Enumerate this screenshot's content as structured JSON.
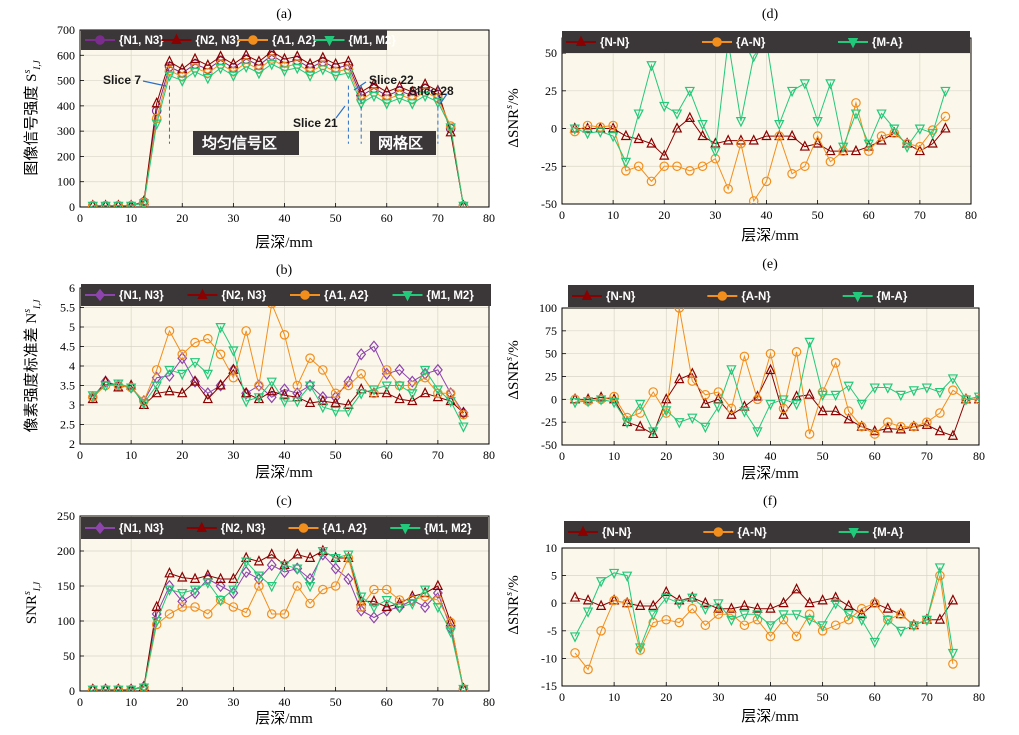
{
  "chart_data": [
    {
      "panel": "(a)",
      "type": "line",
      "xlabel": "层深/mm",
      "ylabel": "图像信号强度 S^s{I,J}",
      "xlim": [
        0,
        80
      ],
      "ylim": [
        0,
        700
      ],
      "xticks": [
        0,
        10,
        20,
        30,
        40,
        50,
        60,
        70,
        80
      ],
      "yticks": [
        0,
        100,
        200,
        300,
        400,
        500,
        600,
        700
      ],
      "grid": true,
      "legend": "top",
      "x": [
        2.5,
        5,
        7.5,
        10,
        12.5,
        15,
        17.5,
        20,
        22.5,
        25,
        27.5,
        30,
        32.5,
        35,
        37.5,
        40,
        42.5,
        45,
        47.5,
        50,
        52.5,
        55,
        57.5,
        60,
        62.5,
        65,
        67.5,
        70,
        72.5,
        75
      ],
      "series": [
        {
          "name": "{N1, N3}",
          "color": "#7b2d8e",
          "marker": "circle",
          "values": [
            5,
            5,
            5,
            5,
            20,
            380,
            555,
            530,
            565,
            545,
            580,
            550,
            585,
            560,
            600,
            570,
            580,
            550,
            575,
            550,
            560,
            440,
            470,
            440,
            460,
            440,
            470,
            445,
            310,
            5
          ]
        },
        {
          "name": "{N2, N3}",
          "color": "#8b0000",
          "marker": "triangle-up",
          "values": [
            5,
            5,
            5,
            5,
            22,
            410,
            575,
            545,
            585,
            560,
            595,
            565,
            600,
            575,
            615,
            585,
            595,
            565,
            590,
            565,
            575,
            455,
            485,
            455,
            475,
            455,
            485,
            460,
            295,
            5
          ]
        },
        {
          "name": "{A1, A2}",
          "color": "#f28e1c",
          "marker": "circle",
          "values": [
            5,
            5,
            5,
            5,
            18,
            350,
            540,
            515,
            550,
            530,
            565,
            535,
            570,
            545,
            585,
            555,
            565,
            535,
            560,
            535,
            545,
            425,
            455,
            425,
            445,
            425,
            455,
            430,
            320,
            5
          ]
        },
        {
          "name": "{M1, M2}",
          "color": "#22c97a",
          "marker": "triangle-down",
          "values": [
            5,
            5,
            5,
            5,
            15,
            330,
            520,
            500,
            535,
            510,
            550,
            520,
            555,
            530,
            565,
            540,
            550,
            520,
            545,
            520,
            530,
            410,
            440,
            410,
            430,
            410,
            440,
            415,
            315,
            5
          ]
        }
      ],
      "annotations": [
        "Slice 7",
        "Slice 21",
        "Slice 22",
        "Slice 28",
        "均匀信号区",
        "网格区"
      ]
    },
    {
      "panel": "(b)",
      "type": "line",
      "xlabel": "层深/mm",
      "ylabel": "像素强度标准差 N^s{I,J}",
      "xlim": [
        0,
        80
      ],
      "ylim": [
        2,
        6
      ],
      "xticks": [
        0,
        10,
        20,
        30,
        40,
        50,
        60,
        70,
        80
      ],
      "yticks": [
        2,
        2.5,
        3,
        3.5,
        4,
        4.5,
        5,
        5.5,
        6
      ],
      "grid": true,
      "legend": "top",
      "x": [
        2.5,
        5,
        7.5,
        10,
        12.5,
        15,
        17.5,
        20,
        22.5,
        25,
        27.5,
        30,
        32.5,
        35,
        37.5,
        40,
        42.5,
        45,
        47.5,
        50,
        52.5,
        55,
        57.5,
        60,
        62.5,
        65,
        67.5,
        70,
        72.5,
        75
      ],
      "series": [
        {
          "name": "{N1, N3}",
          "color": "#8e44ad",
          "marker": "diamond",
          "values": [
            3.2,
            3.6,
            3.5,
            3.45,
            3.1,
            3.7,
            3.75,
            4.2,
            3.6,
            3.3,
            3.5,
            3.9,
            3.3,
            3.5,
            3.2,
            3.4,
            3.3,
            3.5,
            3.2,
            3.2,
            3.6,
            4.3,
            4.5,
            3.8,
            3.9,
            3.6,
            3.8,
            3.9,
            3.3,
            2.8
          ]
        },
        {
          "name": "{N2, N3}",
          "color": "#8b0000",
          "marker": "triangle-up",
          "values": [
            3.15,
            3.6,
            3.45,
            3.5,
            3.0,
            3.3,
            3.35,
            3.3,
            3.6,
            3.15,
            3.5,
            3.9,
            3.3,
            3.15,
            3.35,
            3.25,
            3.2,
            3.05,
            3.1,
            3.05,
            3.0,
            3.4,
            3.3,
            3.3,
            3.15,
            3.1,
            3.3,
            3.2,
            3.1,
            2.8
          ]
        },
        {
          "name": "{A1, A2}",
          "color": "#f28e1c",
          "marker": "circle",
          "values": [
            3.2,
            3.5,
            3.5,
            3.45,
            3.1,
            3.9,
            4.9,
            4.3,
            4.6,
            4.7,
            4.3,
            3.7,
            4.9,
            3.5,
            5.6,
            4.8,
            3.5,
            4.2,
            3.9,
            3.3,
            3.5,
            3.8,
            3.3,
            3.9,
            3.5,
            3.5,
            3.7,
            3.3,
            3.3,
            2.75
          ]
        },
        {
          "name": "{M1, M2}",
          "color": "#22c97a",
          "marker": "triangle-down",
          "values": [
            3.25,
            3.5,
            3.55,
            3.45,
            3.05,
            3.5,
            3.9,
            3.8,
            4.1,
            3.8,
            5.0,
            4.4,
            3.1,
            3.2,
            3.6,
            3.1,
            3.1,
            3.5,
            2.95,
            2.85,
            2.85,
            3.3,
            3.4,
            3.5,
            3.5,
            3.3,
            3.9,
            3.4,
            3.1,
            2.45
          ]
        }
      ]
    },
    {
      "panel": "(c)",
      "type": "line",
      "xlabel": "层深/mm",
      "ylabel": "SNR^s{I,J}",
      "xlim": [
        0,
        80
      ],
      "ylim": [
        0,
        250
      ],
      "xticks": [
        0,
        10,
        20,
        30,
        40,
        50,
        60,
        70,
        80
      ],
      "yticks": [
        0,
        50,
        100,
        150,
        200,
        250
      ],
      "grid": true,
      "legend": "top",
      "x": [
        2.5,
        5,
        7.5,
        10,
        12.5,
        15,
        17.5,
        20,
        22.5,
        25,
        27.5,
        30,
        32.5,
        35,
        37.5,
        40,
        42.5,
        45,
        47.5,
        50,
        52.5,
        55,
        57.5,
        60,
        62.5,
        65,
        67.5,
        70,
        72.5,
        75
      ],
      "series": [
        {
          "name": "{N1, N3}",
          "color": "#8e44ad",
          "marker": "diamond",
          "values": [
            2,
            2,
            2,
            2,
            6,
            110,
            150,
            128,
            140,
            160,
            150,
            140,
            170,
            160,
            180,
            170,
            175,
            160,
            195,
            175,
            160,
            115,
            105,
            115,
            120,
            130,
            120,
            140,
            90,
            3
          ]
        },
        {
          "name": "{N2, N3}",
          "color": "#8b0000",
          "marker": "triangle-up",
          "values": [
            2,
            2,
            2,
            2,
            6,
            120,
            168,
            162,
            160,
            165,
            160,
            160,
            190,
            185,
            195,
            180,
            195,
            190,
            200,
            190,
            190,
            128,
            128,
            120,
            125,
            135,
            140,
            150,
            98,
            3
          ]
        },
        {
          "name": "{A1, A2}",
          "color": "#f28e1c",
          "marker": "circle",
          "values": [
            2,
            2,
            2,
            2,
            5,
            95,
            110,
            120,
            120,
            110,
            130,
            120,
            112,
            150,
            110,
            110,
            150,
            125,
            145,
            150,
            190,
            120,
            145,
            145,
            130,
            130,
            135,
            130,
            98,
            3
          ]
        },
        {
          "name": "{M1, M2}",
          "color": "#22c97a",
          "marker": "triangle-down",
          "values": [
            2,
            2,
            2,
            2,
            5,
            100,
            145,
            140,
            145,
            155,
            130,
            145,
            185,
            165,
            150,
            180,
            175,
            150,
            200,
            190,
            195,
            135,
            120,
            130,
            120,
            125,
            145,
            120,
            85,
            3
          ]
        }
      ]
    },
    {
      "panel": "(d)",
      "type": "line",
      "xlabel": "层深/mm",
      "ylabel": "ΔSNR^s/%",
      "xlim": [
        0,
        80
      ],
      "ylim": [
        -50,
        60
      ],
      "xticks": [
        0,
        10,
        20,
        30,
        40,
        50,
        60,
        70,
        80
      ],
      "yticks": [
        -50,
        -25,
        0,
        25,
        50
      ],
      "grid": true,
      "legend": "top",
      "x": [
        2.5,
        5,
        7.5,
        10,
        12.5,
        15,
        17.5,
        20,
        22.5,
        25,
        27.5,
        30,
        32.5,
        35,
        37.5,
        40,
        42.5,
        45,
        47.5,
        50,
        52.5,
        55,
        57.5,
        60,
        62.5,
        65,
        67.5,
        70,
        72.5,
        75
      ],
      "series": [
        {
          "name": "{N-N}",
          "color": "#8b0000",
          "marker": "triangle-up",
          "values": [
            0,
            0,
            0,
            0,
            -5,
            -7,
            -10,
            -18,
            0,
            7,
            -5,
            -10,
            -8,
            -8,
            -8,
            -5,
            -5,
            -5,
            -12,
            -10,
            -15,
            -15,
            -15,
            -12,
            -8,
            -3,
            -10,
            -15,
            -10,
            0
          ]
        },
        {
          "name": "{A-N}",
          "color": "#f28e1c",
          "marker": "circle",
          "values": [
            -2,
            2,
            1,
            2,
            -28,
            -25,
            -35,
            -25,
            -25,
            -28,
            -25,
            -20,
            -40,
            -10,
            -48,
            -35,
            -5,
            -30,
            -25,
            -5,
            -22,
            -15,
            17,
            -15,
            -5,
            -3,
            -10,
            -12,
            -1,
            8
          ]
        },
        {
          "name": "{M-A}",
          "color": "#22c97a",
          "marker": "triangle-down",
          "values": [
            0,
            -3,
            -2,
            -5,
            -22,
            10,
            42,
            15,
            10,
            25,
            3,
            -15,
            58,
            5,
            48,
            58,
            3,
            25,
            30,
            5,
            30,
            -12,
            10,
            -10,
            10,
            0,
            -12,
            0,
            -3,
            25
          ]
        }
      ]
    },
    {
      "panel": "(e)",
      "type": "line",
      "xlabel": "层深/mm",
      "ylabel": "ΔSNR^s/%",
      "xlim": [
        0,
        80
      ],
      "ylim": [
        -50,
        100
      ],
      "xticks": [
        0,
        10,
        20,
        30,
        40,
        50,
        60,
        70,
        80
      ],
      "yticks": [
        -50,
        -25,
        0,
        25,
        50,
        75,
        100
      ],
      "grid": true,
      "legend": "top",
      "x": [
        2.5,
        5,
        7.5,
        10,
        12.5,
        15,
        17.5,
        20,
        22.5,
        25,
        27.5,
        30,
        32.5,
        35,
        37.5,
        40,
        42.5,
        45,
        47.5,
        50,
        52.5,
        55,
        57.5,
        60,
        62.5,
        65,
        67.5,
        70,
        72.5,
        75,
        77.5,
        80
      ],
      "series": [
        {
          "name": "{N-N}",
          "color": "#8b0000",
          "marker": "triangle-up",
          "values": [
            0,
            0,
            2,
            0,
            -25,
            -30,
            -38,
            0,
            22,
            28,
            -5,
            0,
            -17,
            -8,
            3,
            32,
            -17,
            3,
            5,
            -13,
            -13,
            -22,
            -30,
            -35,
            -32,
            -33,
            -30,
            -28,
            -35,
            -40,
            0,
            0
          ]
        },
        {
          "name": "{A-N}",
          "color": "#f28e1c",
          "marker": "circle",
          "values": [
            0,
            -2,
            0,
            3,
            -20,
            -15,
            8,
            -15,
            100,
            20,
            5,
            8,
            -10,
            47,
            0,
            50,
            -10,
            52,
            -38,
            8,
            40,
            -13,
            -30,
            -38,
            -25,
            -30,
            -30,
            -25,
            -15,
            10,
            0,
            0
          ]
        },
        {
          "name": "{M-A}",
          "color": "#22c97a",
          "marker": "triangle-down",
          "values": [
            -3,
            -2,
            0,
            -3,
            -25,
            -5,
            -35,
            -12,
            -25,
            -20,
            -30,
            -8,
            33,
            -13,
            -35,
            -5,
            0,
            -5,
            63,
            5,
            5,
            15,
            -5,
            13,
            13,
            5,
            10,
            13,
            8,
            23,
            0,
            3
          ]
        }
      ]
    },
    {
      "panel": "(f)",
      "type": "line",
      "xlabel": "层深/mm",
      "ylabel": "ΔSNR^s/%",
      "xlim": [
        0,
        80
      ],
      "ylim": [
        -15,
        10
      ],
      "xticks": [
        0,
        10,
        20,
        30,
        40,
        50,
        60,
        70,
        80
      ],
      "yticks": [
        -15,
        -10,
        -5,
        0,
        5,
        10
      ],
      "grid": true,
      "legend": "top",
      "x": [
        2.5,
        5,
        7.5,
        10,
        12.5,
        15,
        17.5,
        20,
        22.5,
        25,
        27.5,
        30,
        32.5,
        35,
        37.5,
        40,
        42.5,
        45,
        47.5,
        50,
        52.5,
        55,
        57.5,
        60,
        62.5,
        65,
        67.5,
        70,
        72.5,
        75
      ],
      "series": [
        {
          "name": "{N-N}",
          "color": "#8b0000",
          "marker": "triangle-up",
          "values": [
            1,
            0.5,
            -0.5,
            0.5,
            0,
            -0.5,
            -0.5,
            2,
            0.5,
            1,
            0,
            -1,
            -1,
            -0.5,
            -1,
            -1,
            0,
            2.5,
            0,
            0.5,
            1,
            -0.5,
            -2,
            0,
            -1,
            -2,
            -4,
            -3,
            -3,
            0.5
          ]
        },
        {
          "name": "{A-N}",
          "color": "#f28e1c",
          "marker": "circle",
          "values": [
            -9,
            -12,
            -5,
            0.5,
            0,
            -8.5,
            -3.5,
            -3,
            -3.5,
            -1,
            -4,
            -2,
            -2,
            -4,
            -3,
            -6,
            -3,
            -6,
            -2,
            -5,
            -4,
            -3,
            -1,
            0,
            -3,
            -2,
            -4,
            -3,
            5,
            -11
          ]
        },
        {
          "name": "{M-A}",
          "color": "#22c97a",
          "marker": "triangle-down",
          "values": [
            -6,
            -1.5,
            4,
            5.5,
            5,
            -8,
            -2,
            1,
            0,
            1,
            -1,
            0,
            -3,
            -2,
            -2,
            -4,
            -2,
            -2,
            -3,
            -4,
            0,
            -2,
            -3,
            -7,
            -3,
            -5,
            -4,
            -3,
            6.5,
            -9
          ]
        }
      ]
    }
  ]
}
